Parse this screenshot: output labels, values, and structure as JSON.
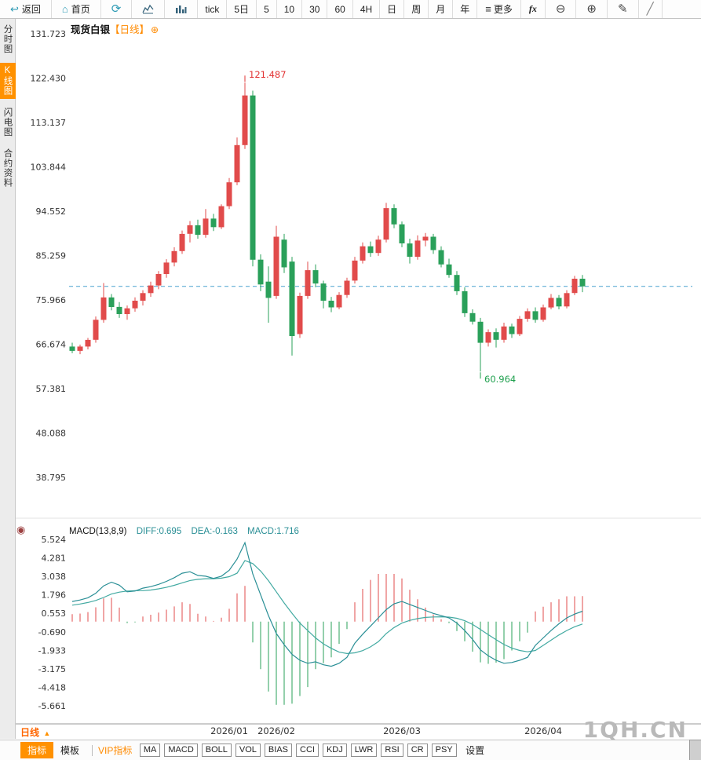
{
  "toolbar": {
    "back_label": "返回",
    "home_label": "首页",
    "periods": [
      "tick",
      "5日",
      "5",
      "10",
      "30",
      "60",
      "4H",
      "日",
      "周",
      "月",
      "年"
    ],
    "more_label": "更多",
    "fx_label": "fx"
  },
  "icons": {
    "back": "↩",
    "home": "⌂",
    "refresh": "⟳",
    "menu": "≡",
    "zoom_out": "⊖",
    "zoom_in": "⊕",
    "pencil": "✎",
    "trendline": "╱",
    "settings_dot": "◉",
    "triangle_up": "▲",
    "add": "⊕"
  },
  "sidebar": {
    "items": [
      {
        "label": "分时图",
        "active": false
      },
      {
        "label": "K线图",
        "active": true
      },
      {
        "label": "闪电图",
        "active": false
      },
      {
        "label": "合约资料",
        "active": false
      }
    ]
  },
  "title": {
    "symbol": "现货白银",
    "period_tag": "【日线】"
  },
  "bottom": {
    "current_period": "日线",
    "indicators_tab": "指标",
    "templates_tab": "模板",
    "vip_label": "VIP指标",
    "indicators": [
      "MA",
      "MACD",
      "BOLL",
      "VOL",
      "BIAS",
      "CCI",
      "KDJ",
      "LWR",
      "RSI",
      "CR",
      "PSY"
    ],
    "settings_label": "设置"
  },
  "watermark": "1QH.CN",
  "colors": {
    "up": "#e14b4b",
    "down": "#2aa05a",
    "diff_line": "#2a8f96",
    "dea_line": "#43aaa2",
    "dashed_line": "#4aa2cf",
    "label_high": "#e23333",
    "label_low": "#1fa04e",
    "accent": "#ff9100"
  },
  "chart_data": {
    "type": "candlestick",
    "symbol": "现货白银",
    "period": "日线",
    "y_axis_ticks": [
      "131.723",
      "122.430",
      "113.137",
      "103.844",
      "94.552",
      "85.259",
      "75.966",
      "66.674",
      "57.381",
      "48.088",
      "38.795"
    ],
    "x_labels": [
      {
        "label": "2026/01",
        "index": 20
      },
      {
        "label": "2026/02",
        "index": 26
      },
      {
        "label": "2026/03",
        "index": 42
      },
      {
        "label": "2026/04",
        "index": 60
      }
    ],
    "high_label": {
      "text": "121.487",
      "value": 121.487,
      "index": 22
    },
    "low_label": {
      "text": "60.964",
      "value": 60.964,
      "index": 52
    },
    "last_price": 78.8,
    "candles": [
      [
        66.2,
        67,
        64.8,
        65.3
      ],
      [
        65.3,
        66.6,
        64.6,
        66.2
      ],
      [
        66.2,
        68,
        65.6,
        67.6
      ],
      [
        67.6,
        72.5,
        67,
        71.8
      ],
      [
        71.8,
        79.5,
        71.2,
        76.5
      ],
      [
        76.5,
        77.2,
        73.8,
        74.5
      ],
      [
        74.5,
        75.5,
        72.2,
        73
      ],
      [
        73,
        74.8,
        71.8,
        74.2
      ],
      [
        74.2,
        76.5,
        73.5,
        75.8
      ],
      [
        75.8,
        78,
        74.8,
        77.4
      ],
      [
        77.4,
        79.8,
        76.6,
        79
      ],
      [
        79,
        82,
        78.2,
        81.4
      ],
      [
        81.4,
        84.5,
        80.6,
        83.8
      ],
      [
        83.8,
        87,
        83,
        86.2
      ],
      [
        86.2,
        90.5,
        85.6,
        89.8
      ],
      [
        89.8,
        92.5,
        88,
        91.6
      ],
      [
        91.6,
        92.8,
        88.8,
        89.6
      ],
      [
        89.6,
        95,
        89,
        93
      ],
      [
        93,
        94,
        90.4,
        91.2
      ],
      [
        91.2,
        96,
        90.8,
        95.6
      ],
      [
        95.6,
        101.5,
        95,
        100.6
      ],
      [
        100.6,
        110,
        100,
        108.4
      ],
      [
        108.4,
        121.487,
        107.6,
        118.8
      ],
      [
        118.8,
        119.8,
        83,
        84.4
      ],
      [
        84.4,
        85.5,
        77.8,
        79.2
      ],
      [
        79.8,
        83,
        71.2,
        76.4
      ],
      [
        76.8,
        91.5,
        76.2,
        89.2
      ],
      [
        88.6,
        89.8,
        81.6,
        82.8
      ],
      [
        84,
        85,
        64.3,
        68.4
      ],
      [
        68.8,
        77.5,
        68,
        76.8
      ],
      [
        76.8,
        84,
        76.2,
        82.2
      ],
      [
        82.2,
        83.4,
        78.6,
        79.4
      ],
      [
        79.4,
        80,
        74.2,
        75.8
      ],
      [
        75.8,
        76.6,
        73.4,
        74.4
      ],
      [
        74.4,
        77.6,
        74,
        77
      ],
      [
        77,
        80.6,
        76.4,
        80
      ],
      [
        80,
        85,
        79.4,
        84.2
      ],
      [
        84.2,
        88,
        83.6,
        87.2
      ],
      [
        87.2,
        88.2,
        85,
        85.8
      ],
      [
        85.8,
        89.4,
        85.2,
        88.6
      ],
      [
        88.6,
        96.3,
        88,
        95.2
      ],
      [
        95.2,
        96,
        91,
        91.8
      ],
      [
        91.8,
        92.4,
        87,
        87.8
      ],
      [
        87.8,
        88.8,
        83.6,
        85
      ],
      [
        85,
        89.5,
        84.4,
        88.4
      ],
      [
        88.4,
        90,
        87.2,
        89.2
      ],
      [
        89.2,
        89.8,
        85.6,
        86.4
      ],
      [
        86.4,
        87.2,
        82.8,
        83.4
      ],
      [
        83.4,
        84.6,
        80.6,
        81.2
      ],
      [
        81.2,
        82,
        77,
        77.8
      ],
      [
        77.8,
        78.6,
        72.4,
        73.2
      ],
      [
        73.2,
        74,
        70.8,
        71.4
      ],
      [
        71.4,
        72.2,
        60.964,
        67
      ],
      [
        67,
        69.8,
        66.2,
        69.2
      ],
      [
        69.2,
        70,
        66,
        67.6
      ],
      [
        67.6,
        71.2,
        67,
        70.4
      ],
      [
        70.4,
        71,
        68,
        68.8
      ],
      [
        68.8,
        72.6,
        68.4,
        72
      ],
      [
        72,
        74.2,
        71.4,
        73.6
      ],
      [
        73.6,
        74.4,
        71.2,
        71.8
      ],
      [
        71.8,
        75,
        71.4,
        74.4
      ],
      [
        74.4,
        77.2,
        74,
        76.4
      ],
      [
        76.4,
        77,
        74,
        74.6
      ],
      [
        74.6,
        78,
        74.2,
        77.4
      ],
      [
        77.4,
        81,
        77,
        80.4
      ],
      [
        80.4,
        81.2,
        77.6,
        78.8
      ]
    ],
    "macd": {
      "title": "MACD(13,8,9)",
      "diff_label": "DIFF:0.695",
      "dea_label": "DEA:-0.163",
      "macd_label": "MACD:1.716",
      "y_ticks": [
        "5.524",
        "4.281",
        "3.038",
        "1.796",
        "0.553",
        "-0.690",
        "-1.933",
        "-3.175",
        "-4.418",
        "-5.661"
      ],
      "diff": [
        1.35,
        1.45,
        1.6,
        1.9,
        2.4,
        2.65,
        2.45,
        2.0,
        2.05,
        2.25,
        2.35,
        2.5,
        2.7,
        2.95,
        3.25,
        3.35,
        3.1,
        3.05,
        2.9,
        3.05,
        3.45,
        4.2,
        5.3,
        3.2,
        1.8,
        0.4,
        -0.8,
        -1.55,
        -2.2,
        -2.6,
        -2.8,
        -2.7,
        -2.9,
        -3.0,
        -2.8,
        -2.4,
        -1.45,
        -0.85,
        -0.3,
        0.25,
        0.8,
        1.2,
        1.35,
        1.15,
        0.95,
        0.75,
        0.55,
        0.4,
        0.25,
        -0.1,
        -0.6,
        -1.2,
        -1.9,
        -2.3,
        -2.6,
        -2.8,
        -2.75,
        -2.6,
        -2.4,
        -1.6,
        -1.1,
        -0.6,
        -0.15,
        0.25,
        0.5,
        0.695
      ],
      "dea": [
        1.1,
        1.18,
        1.28,
        1.42,
        1.62,
        1.85,
        1.98,
        2.05,
        2.08,
        2.08,
        2.12,
        2.2,
        2.3,
        2.44,
        2.6,
        2.76,
        2.84,
        2.88,
        2.88,
        2.92,
        3.02,
        3.25,
        4.1,
        3.9,
        3.4,
        2.75,
        2.0,
        1.25,
        0.56,
        -0.1,
        -0.6,
        -1.1,
        -1.5,
        -1.8,
        -2.05,
        -2.15,
        -2.1,
        -1.95,
        -1.7,
        -1.35,
        -0.8,
        -0.4,
        -0.1,
        0.08,
        0.2,
        0.28,
        0.31,
        0.32,
        0.3,
        0.22,
        0.06,
        -0.19,
        -0.53,
        -0.88,
        -1.22,
        -1.54,
        -1.78,
        -1.94,
        -2.03,
        -1.94,
        -1.6,
        -1.25,
        -0.9,
        -0.6,
        -0.35,
        -0.163
      ]
    }
  }
}
